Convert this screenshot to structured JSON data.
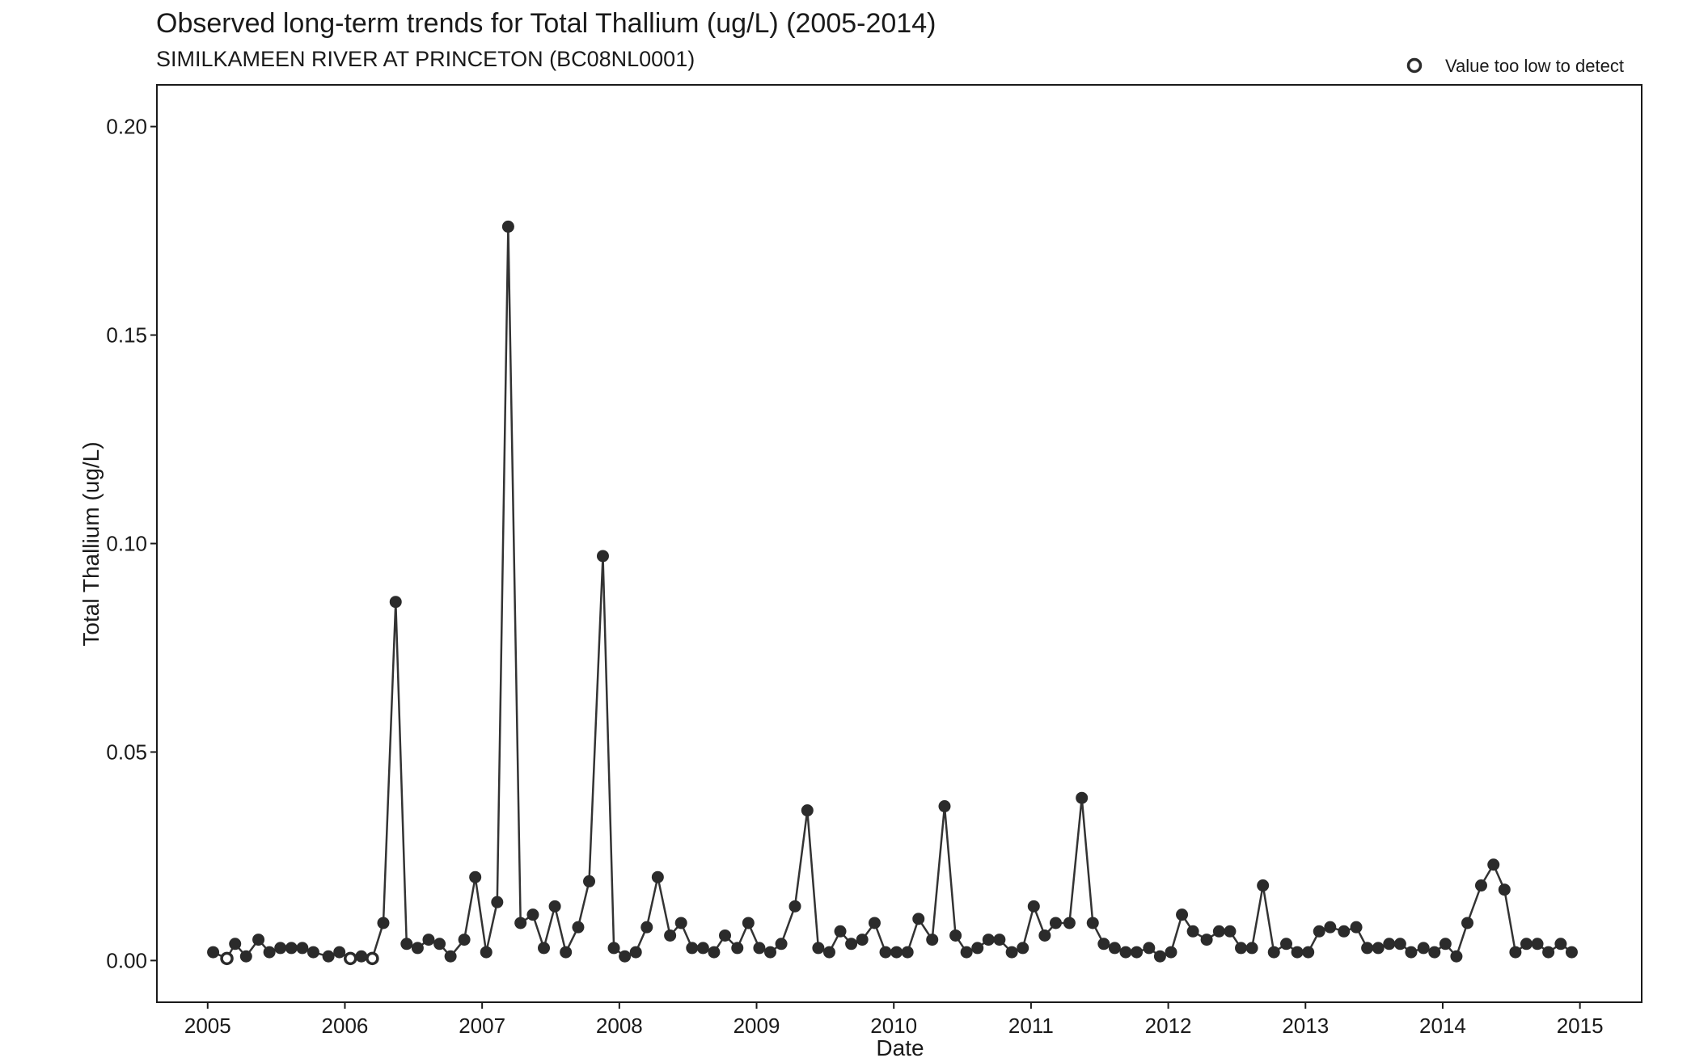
{
  "chart_data": {
    "type": "line",
    "title": "Observed long-term trends for Total Thallium (ug/L) (2005-2014)",
    "subtitle": "SIMILKAMEEN RIVER AT PRINCETON (BC08NL0001)",
    "xlabel": "Date",
    "ylabel": "Total Thallium (ug/L)",
    "xlim": [
      2004.63,
      2015.45
    ],
    "ylim": [
      -0.01,
      0.21
    ],
    "x_ticks": [
      "2005",
      "2006",
      "2007",
      "2008",
      "2009",
      "2010",
      "2011",
      "2012",
      "2013",
      "2014",
      "2015"
    ],
    "y_ticks": [
      "0.00",
      "0.05",
      "0.10",
      "0.15",
      "0.20"
    ],
    "y_tick_values": [
      0.0,
      0.05,
      0.1,
      0.15,
      0.2
    ],
    "grid": false,
    "legend": {
      "label": "Value too low to detect",
      "position": "top-right"
    },
    "colors": {
      "line": "#333333",
      "point": "#2b2b2b",
      "axis": "#1a1a1a"
    },
    "series": [
      {
        "x": [
          2005.04,
          2005.14,
          2005.2,
          2005.28,
          2005.37,
          2005.45,
          2005.53,
          2005.61,
          2005.69,
          2005.77,
          2005.88,
          2005.96,
          2006.04,
          2006.12,
          2006.2,
          2006.28,
          2006.37,
          2006.45,
          2006.53,
          2006.61,
          2006.69,
          2006.77,
          2006.87,
          2006.95,
          2007.03,
          2007.11,
          2007.19,
          2007.28,
          2007.37,
          2007.45,
          2007.53,
          2007.61,
          2007.7,
          2007.78,
          2007.88,
          2007.96,
          2008.04,
          2008.12,
          2008.2,
          2008.28,
          2008.37,
          2008.45,
          2008.53,
          2008.61,
          2008.69,
          2008.77,
          2008.86,
          2008.94,
          2009.02,
          2009.1,
          2009.18,
          2009.28,
          2009.37,
          2009.45,
          2009.53,
          2009.61,
          2009.69,
          2009.77,
          2009.86,
          2009.94,
          2010.02,
          2010.1,
          2010.18,
          2010.28,
          2010.37,
          2010.45,
          2010.53,
          2010.61,
          2010.69,
          2010.77,
          2010.86,
          2010.94,
          2011.02,
          2011.1,
          2011.18,
          2011.28,
          2011.37,
          2011.45,
          2011.53,
          2011.61,
          2011.69,
          2011.77,
          2011.86,
          2011.94,
          2012.02,
          2012.1,
          2012.18,
          2012.28,
          2012.37,
          2012.45,
          2012.53,
          2012.61,
          2012.69,
          2012.77,
          2012.86,
          2012.94,
          2013.02,
          2013.1,
          2013.18,
          2013.28,
          2013.37,
          2013.45,
          2013.53,
          2013.61,
          2013.69,
          2013.77,
          2013.86,
          2013.94,
          2014.02,
          2014.1,
          2014.18,
          2014.28,
          2014.37,
          2014.45,
          2014.53,
          2014.61,
          2014.69,
          2014.77,
          2014.86,
          2014.94
        ],
        "y": [
          0.002,
          0.0005,
          0.004,
          0.001,
          0.005,
          0.002,
          0.003,
          0.003,
          0.003,
          0.002,
          0.001,
          0.002,
          0.0005,
          0.001,
          0.0005,
          0.009,
          0.086,
          0.004,
          0.003,
          0.005,
          0.004,
          0.001,
          0.005,
          0.02,
          0.002,
          0.014,
          0.176,
          0.009,
          0.011,
          0.003,
          0.013,
          0.002,
          0.008,
          0.019,
          0.097,
          0.003,
          0.001,
          0.002,
          0.008,
          0.02,
          0.006,
          0.009,
          0.003,
          0.003,
          0.002,
          0.006,
          0.003,
          0.009,
          0.003,
          0.002,
          0.004,
          0.013,
          0.036,
          0.003,
          0.002,
          0.007,
          0.004,
          0.005,
          0.009,
          0.002,
          0.002,
          0.002,
          0.01,
          0.005,
          0.037,
          0.006,
          0.002,
          0.003,
          0.005,
          0.005,
          0.002,
          0.003,
          0.013,
          0.006,
          0.009,
          0.009,
          0.039,
          0.009,
          0.004,
          0.003,
          0.002,
          0.002,
          0.003,
          0.001,
          0.002,
          0.011,
          0.007,
          0.005,
          0.007,
          0.007,
          0.003,
          0.003,
          0.018,
          0.002,
          0.004,
          0.002,
          0.002,
          0.007,
          0.008,
          0.007,
          0.008,
          0.003,
          0.003,
          0.004,
          0.004,
          0.002,
          0.003,
          0.002,
          0.004,
          0.001,
          0.009,
          0.018,
          0.023,
          0.017,
          0.002,
          0.004,
          0.004,
          0.002,
          0.004,
          0.002
        ],
        "below_detection": [
          false,
          true,
          false,
          false,
          false,
          false,
          false,
          false,
          false,
          false,
          false,
          false,
          true,
          false,
          true,
          false,
          false,
          false,
          false,
          false,
          false,
          false,
          false,
          false,
          false,
          false,
          false,
          false,
          false,
          false,
          false,
          false,
          false,
          false,
          false,
          false,
          false,
          false,
          false,
          false,
          false,
          false,
          false,
          false,
          false,
          false,
          false,
          false,
          false,
          false,
          false,
          false,
          false,
          false,
          false,
          false,
          false,
          false,
          false,
          false,
          false,
          false,
          false,
          false,
          false,
          false,
          false,
          false,
          false,
          false,
          false,
          false,
          false,
          false,
          false,
          false,
          false,
          false,
          false,
          false,
          false,
          false,
          false,
          false,
          false,
          false,
          false,
          false,
          false,
          false,
          false,
          false,
          false,
          false,
          false,
          false,
          false,
          false,
          false,
          false,
          false,
          false,
          false,
          false,
          false,
          false,
          false,
          false,
          false,
          false,
          false,
          false,
          false,
          false,
          false,
          false,
          false,
          false,
          false,
          false
        ]
      }
    ]
  }
}
